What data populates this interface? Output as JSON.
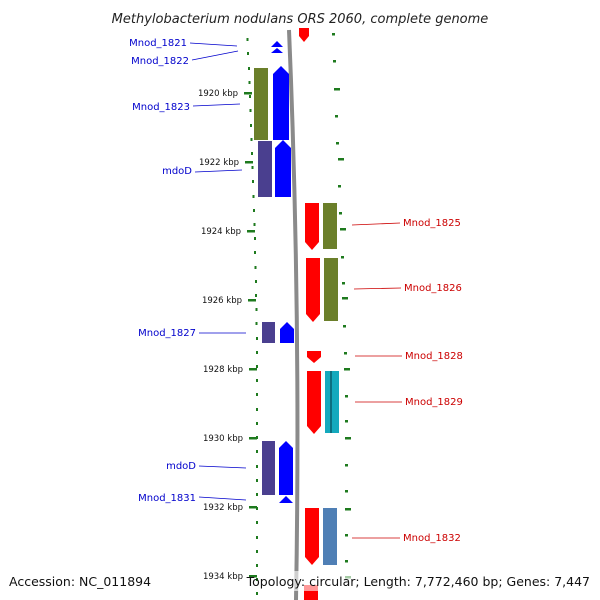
{
  "title": "Methylobacterium nodulans ORS 2060, complete genome",
  "footer": {
    "accession": "Accession: NC_011894",
    "summary": "Topology: circular; Length: 7,772,460 bp; Genes: 7,447"
  },
  "scale": {
    "unit": "kbp",
    "labels": [
      "1920 kbp",
      "1922 kbp",
      "1924 kbp",
      "1926 kbp",
      "1928 kbp",
      "1930 kbp",
      "1932 kbp",
      "1934 kbp"
    ]
  },
  "colors": {
    "left_strand_label": "#0000cc",
    "right_strand_label": "#cc0000",
    "blue_arrow": "#0000ff",
    "red_arrow": "#ff0000",
    "olive": "#6b7f2a",
    "slate": "#4a3f8f",
    "teal": "#14a9bd",
    "steel": "#4f7fb5",
    "tick_green": "#1e7a1e",
    "backbone": "#888888"
  },
  "genes_left": [
    {
      "label": "Mnod_1821"
    },
    {
      "label": "Mnod_1822"
    },
    {
      "label": "Mnod_1823"
    },
    {
      "label": "mdoD"
    },
    {
      "label": "Mnod_1827"
    },
    {
      "label": "mdoD"
    },
    {
      "label": "Mnod_1831"
    }
  ],
  "genes_right": [
    {
      "label": "Mnod_1825"
    },
    {
      "label": "Mnod_1826"
    },
    {
      "label": "Mnod_1828"
    },
    {
      "label": "Mnod_1829"
    },
    {
      "label": "Mnod_1832"
    }
  ]
}
